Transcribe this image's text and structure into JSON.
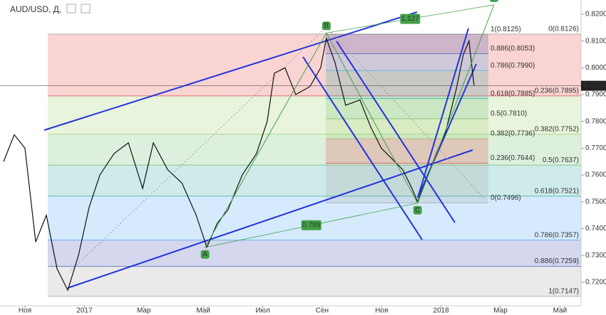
{
  "chart_data": {
    "type": "line",
    "title": "AUD/USD, Д,",
    "color": "#111111",
    "x": [
      -0.72,
      -0.36,
      0,
      0.36,
      0.72,
      1.08,
      1.44,
      1.8,
      2.16,
      2.52,
      3.0,
      3.48,
      3.96,
      4.32,
      4.8,
      5.28,
      5.76,
      6.12,
      6.47,
      6.83,
      7.31,
      7.79,
      8.15,
      8.39,
      8.75,
      9.11,
      9.59,
      9.95,
      10.14,
      10.43,
      10.79,
      11.27,
      11.63,
      11.99,
      12.35,
      12.71,
      13.02,
      13.21,
      13.5,
      13.84,
      14.15,
      14.51,
      14.75,
      14.94,
      15.11
    ],
    "values": [
      0.765,
      0.775,
      0.77,
      0.735,
      0.745,
      0.725,
      0.717,
      0.73,
      0.748,
      0.76,
      0.768,
      0.772,
      0.755,
      0.772,
      0.762,
      0.757,
      0.745,
      0.733,
      0.742,
      0.747,
      0.76,
      0.768,
      0.78,
      0.798,
      0.8,
      0.79,
      0.793,
      0.8,
      0.811,
      0.802,
      0.786,
      0.788,
      0.778,
      0.77,
      0.766,
      0.762,
      0.755,
      0.75,
      0.758,
      0.768,
      0.776,
      0.792,
      0.805,
      0.81,
      0.7933
    ],
    "xlim": [
      -0.84,
      18.71
    ],
    "xticks": [
      {
        "value": 0,
        "label": "Ноя"
      },
      {
        "value": 2,
        "label": "2017"
      },
      {
        "value": 4,
        "label": "Мар"
      },
      {
        "value": 6,
        "label": "Май"
      },
      {
        "value": 8,
        "label": "Июл"
      },
      {
        "value": 10,
        "label": "Сен"
      },
      {
        "value": 12,
        "label": "Ноя"
      },
      {
        "value": 14,
        "label": "2018"
      },
      {
        "value": 16,
        "label": "Мар"
      },
      {
        "value": 18,
        "label": "Май"
      }
    ],
    "ylim": [
      0.7112,
      0.8253
    ],
    "yticks": [
      {
        "value": 0.72,
        "label": "0.7200"
      },
      {
        "value": 0.73,
        "label": "0.7300"
      },
      {
        "value": 0.74,
        "label": "0.7400"
      },
      {
        "value": 0.75,
        "label": "0.7500"
      },
      {
        "value": 0.76,
        "label": "0.7600"
      },
      {
        "value": 0.77,
        "label": "0.7700"
      },
      {
        "value": 0.78,
        "label": "0.7800"
      },
      {
        "value": 0.79,
        "label": "0.7900"
      },
      {
        "value": 0.8,
        "label": "0.8000"
      },
      {
        "value": 0.81,
        "label": "0.8100"
      },
      {
        "value": 0.82,
        "label": "0.8200"
      }
    ],
    "pattern": {
      "labels": [
        "A",
        "B",
        "C",
        "D"
      ],
      "x": [
        6.06,
        10.14,
        13.21,
        15.78
      ],
      "values": [
        0.733,
        0.813,
        0.7495,
        0.8235
      ],
      "color": "#43a047",
      "ratios": [
        "1.127",
        "0.789"
      ]
    },
    "fib_sets": [
      {
        "levels": [
          {
            "value": 0.8126,
            "label": "0(0.8126)",
            "color": "#9e9e9e"
          },
          {
            "value": 0.7895,
            "label": "0.236(0.7895)",
            "color": "#e53935"
          },
          {
            "value": 0.7752,
            "label": "0.382(0.7752)",
            "color": "#9ccc65"
          },
          {
            "value": 0.7637,
            "label": "0.5(0.7637)",
            "color": "#66bb6a"
          },
          {
            "value": 0.7521,
            "label": "0.618(0.7521)",
            "color": "#26a69a"
          },
          {
            "value": 0.7357,
            "label": "0.786(0.7357)",
            "color": "#42a5f5"
          },
          {
            "value": 0.7259,
            "label": "0.886(0.7259)",
            "color": "#3949ab"
          },
          {
            "value": 0.7147,
            "label": "1(0.7147)",
            "color": "#9e9e9e"
          }
        ]
      },
      {
        "levels": [
          {
            "value": 0.8125,
            "label": "1(0.8125)",
            "color": "#9e9e9e"
          },
          {
            "value": 0.8053,
            "label": "0.886(0.8053)",
            "color": "#3949ab"
          },
          {
            "value": 0.799,
            "label": "0.786(0.7990)",
            "color": "#42a5f5"
          },
          {
            "value": 0.7885,
            "label": "0.618(0.7885)",
            "color": "#26a69a"
          },
          {
            "value": 0.781,
            "label": "0.5(0.7810)",
            "color": "#66bb6a"
          },
          {
            "value": 0.7736,
            "label": "0.382(0.7736)",
            "color": "#9ccc65"
          },
          {
            "value": 0.7644,
            "label": "0.236(0.7644)",
            "color": "#e53935"
          },
          {
            "value": 0.7496,
            "label": "0(0.7496)",
            "color": "#9e9e9e"
          }
        ]
      }
    ]
  }
}
